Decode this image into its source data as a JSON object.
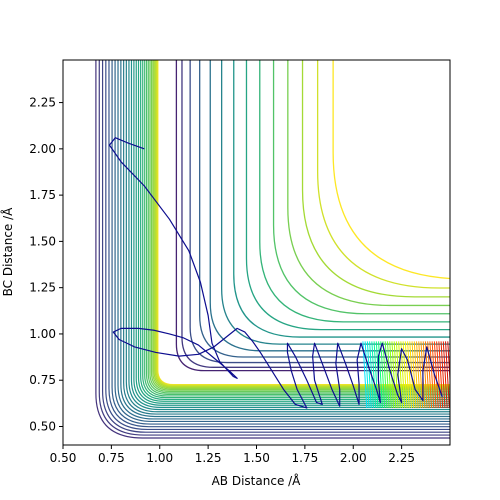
{
  "chart_data": {
    "type": "contour",
    "title": "",
    "xlabel": "AB Distance /Å",
    "ylabel": "BC Distance /Å",
    "xlim": [
      0.5,
      2.5
    ],
    "ylim": [
      0.4,
      2.48
    ],
    "x_ticks": [
      0.5,
      0.75,
      1.0,
      1.25,
      1.5,
      1.75,
      2.0,
      2.25
    ],
    "x_tick_labels": [
      "0.50",
      "0.75",
      "1.00",
      "1.25",
      "1.50",
      "1.75",
      "2.00",
      "2.25"
    ],
    "y_ticks": [
      0.5,
      0.75,
      1.0,
      1.25,
      1.5,
      1.75,
      2.0,
      2.25
    ],
    "y_tick_labels": [
      "0.50",
      "0.75",
      "1.00",
      "1.25",
      "1.50",
      "1.75",
      "2.00",
      "2.25"
    ],
    "grid": false,
    "legend": "none",
    "colormap": [
      "#440154",
      "#472c7a",
      "#3b528b",
      "#2c728e",
      "#21918c",
      "#28ae80",
      "#5ec962",
      "#addc30",
      "#fde725"
    ],
    "hot_colormap": [
      "#00e5ff",
      "#00ff7f",
      "#a0ff00",
      "#ffef00",
      "#ff9a00",
      "#ff3c00",
      "#c80000"
    ],
    "contour_levels": 30,
    "valley_corner": [
      1.05,
      0.78
    ],
    "trajectory_color": "#0d0d8f",
    "trajectory_path": [
      [
        0.92,
        2.0
      ],
      [
        0.84,
        2.03
      ],
      [
        0.77,
        2.06
      ],
      [
        0.74,
        2.02
      ],
      [
        0.8,
        1.93
      ],
      [
        0.92,
        1.8
      ],
      [
        1.05,
        1.62
      ],
      [
        1.15,
        1.45
      ],
      [
        1.21,
        1.28
      ],
      [
        1.25,
        1.1
      ],
      [
        1.27,
        0.95
      ],
      [
        1.31,
        0.85
      ],
      [
        1.38,
        0.77
      ],
      [
        1.4,
        0.76
      ],
      [
        1.36,
        0.8
      ],
      [
        1.28,
        0.87
      ],
      [
        1.2,
        0.94
      ],
      [
        1.12,
        0.98
      ],
      [
        1.05,
        1.0
      ],
      [
        0.97,
        1.02
      ],
      [
        0.89,
        1.03
      ],
      [
        0.8,
        1.03
      ],
      [
        0.76,
        1.01
      ],
      [
        0.79,
        0.97
      ],
      [
        0.87,
        0.93
      ],
      [
        0.98,
        0.9
      ],
      [
        1.1,
        0.88
      ],
      [
        1.2,
        0.89
      ],
      [
        1.28,
        0.93
      ],
      [
        1.34,
        0.98
      ],
      [
        1.4,
        1.03
      ],
      [
        1.44,
        1.01
      ],
      [
        1.48,
        0.96
      ],
      [
        1.52,
        0.9
      ],
      [
        1.58,
        0.8
      ],
      [
        1.64,
        0.7
      ],
      [
        1.7,
        0.62
      ],
      [
        1.76,
        0.6
      ],
      [
        1.71,
        0.7
      ],
      [
        1.68,
        0.8
      ],
      [
        1.66,
        0.9
      ],
      [
        1.66,
        0.95
      ],
      [
        1.7,
        0.88
      ],
      [
        1.76,
        0.75
      ],
      [
        1.81,
        0.63
      ],
      [
        1.84,
        0.62
      ],
      [
        1.8,
        0.75
      ],
      [
        1.79,
        0.88
      ],
      [
        1.8,
        0.95
      ],
      [
        1.84,
        0.84
      ],
      [
        1.89,
        0.7
      ],
      [
        1.93,
        0.61
      ],
      [
        1.93,
        0.7
      ],
      [
        1.91,
        0.84
      ],
      [
        1.92,
        0.95
      ],
      [
        1.96,
        0.84
      ],
      [
        2.0,
        0.72
      ],
      [
        2.03,
        0.62
      ],
      [
        2.03,
        0.73
      ],
      [
        2.02,
        0.86
      ],
      [
        2.04,
        0.95
      ],
      [
        2.08,
        0.82
      ],
      [
        2.12,
        0.7
      ],
      [
        2.14,
        0.63
      ],
      [
        2.13,
        0.75
      ],
      [
        2.13,
        0.88
      ],
      [
        2.15,
        0.95
      ],
      [
        2.19,
        0.8
      ],
      [
        2.23,
        0.67
      ],
      [
        2.25,
        0.63
      ],
      [
        2.23,
        0.78
      ],
      [
        2.25,
        0.92
      ],
      [
        2.28,
        0.86
      ],
      [
        2.32,
        0.7
      ],
      [
        2.36,
        0.64
      ],
      [
        2.36,
        0.8
      ],
      [
        2.38,
        0.93
      ],
      [
        2.42,
        0.78
      ],
      [
        2.46,
        0.66
      ]
    ]
  }
}
